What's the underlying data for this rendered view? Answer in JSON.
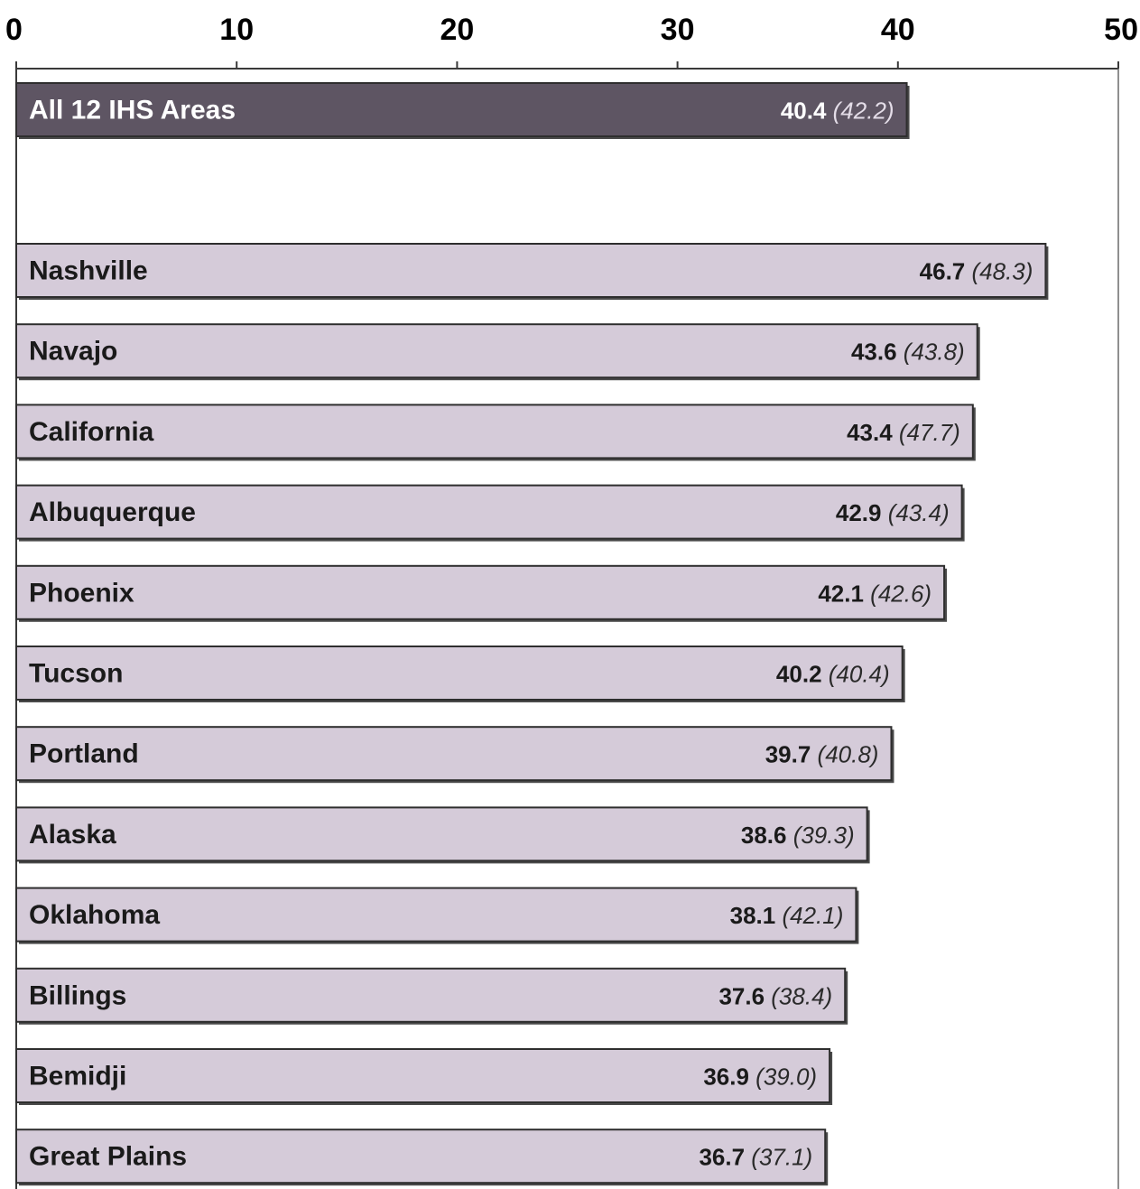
{
  "chart_data": {
    "type": "bar",
    "orientation": "horizontal",
    "title": "",
    "xlabel": "",
    "ylabel": "",
    "xlim": [
      0,
      50
    ],
    "xticks": [
      "0",
      "10",
      "20",
      "30",
      "40",
      "50"
    ],
    "tick_position": "top",
    "grid": false,
    "bar_color": "#d5cbd9",
    "highlight_color": "#5e5563",
    "summary": {
      "label": "All 12 IHS Areas",
      "value": 40.4,
      "value_text": "40.4",
      "secondary_text": "(42.2)"
    },
    "categories": [
      "Nashville",
      "Navajo",
      "California",
      "Albuquerque",
      "Phoenix",
      "Tucson",
      "Portland",
      "Alaska",
      "Oklahoma",
      "Billings",
      "Bemidji",
      "Great Plains"
    ],
    "values": [
      46.7,
      43.6,
      43.4,
      42.9,
      42.1,
      40.2,
      39.7,
      38.6,
      38.1,
      37.6,
      36.9,
      36.7
    ],
    "value_texts": [
      "46.7",
      "43.6",
      "43.4",
      "42.9",
      "42.1",
      "40.2",
      "39.7",
      "38.6",
      "38.1",
      "37.6",
      "36.9",
      "36.7"
    ],
    "secondary_texts": [
      "(48.3)",
      "(43.8)",
      "(47.7)",
      "(43.4)",
      "(42.6)",
      "(40.4)",
      "(40.8)",
      "(39.3)",
      "(42.1)",
      "(38.4)",
      "(39.0)",
      "(37.1)"
    ]
  }
}
